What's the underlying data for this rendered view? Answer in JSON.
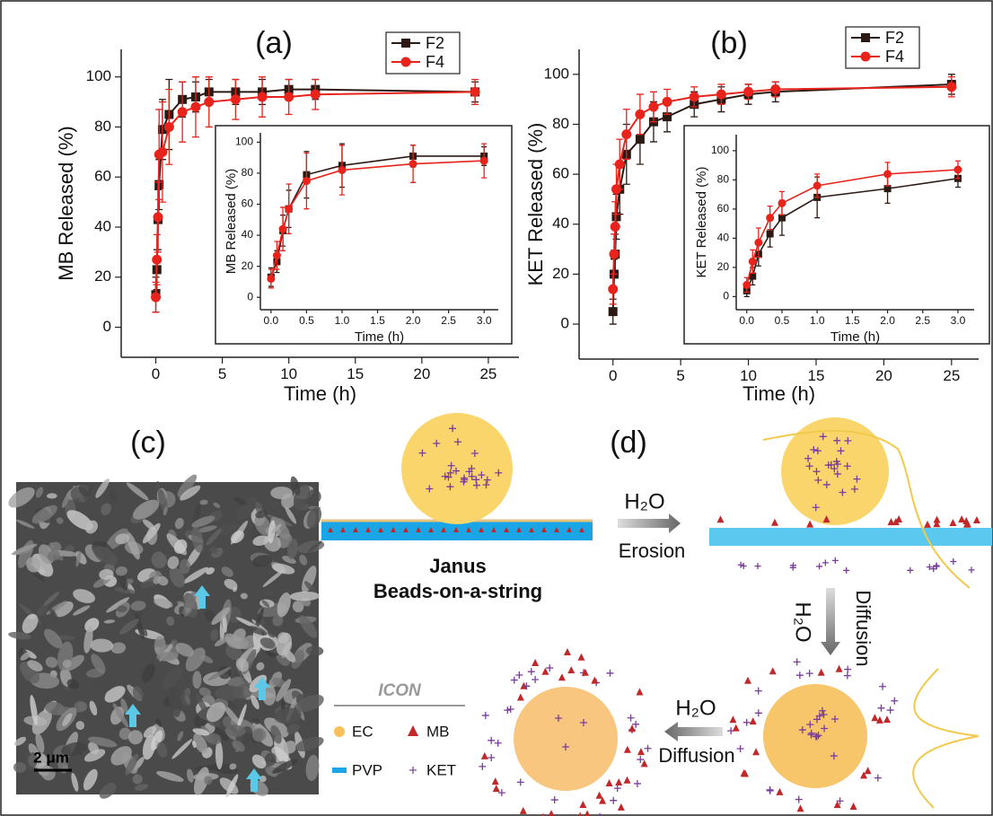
{
  "chart_data": [
    {
      "type": "line",
      "title": "(a)",
      "x_label": "Time (h)",
      "y_label": "MB Released (%)",
      "x": [
        0,
        0.083,
        0.167,
        0.25,
        0.5,
        1,
        2,
        3,
        4,
        6,
        8,
        10,
        12,
        24
      ],
      "series": [
        {
          "name": "F2",
          "color": "#2b1a14",
          "marker": "square",
          "values": [
            13,
            23,
            43,
            57,
            79,
            85,
            91,
            92,
            94,
            94,
            94,
            95,
            95,
            94
          ],
          "errors": [
            7,
            8,
            12,
            10,
            12,
            14,
            7,
            6,
            5,
            5,
            5,
            4,
            4,
            4
          ]
        },
        {
          "name": "F4",
          "color": "#e8231c",
          "marker": "circle",
          "values": [
            12,
            27,
            44,
            69,
            70,
            80,
            86,
            88,
            90,
            91,
            92,
            92,
            93,
            94
          ],
          "errors": [
            6,
            10,
            14,
            18,
            20,
            15,
            12,
            12,
            10,
            8,
            8,
            7,
            6,
            5
          ]
        }
      ],
      "xlim": [
        -2.6,
        27.3
      ],
      "ylim": [
        -12,
        111
      ],
      "xticks": [
        0,
        5,
        10,
        15,
        20,
        25
      ],
      "yticks": [
        0,
        20,
        40,
        60,
        80,
        100
      ],
      "legend": "upper right"
    },
    {
      "type": "line",
      "x_label": "Time (h)",
      "y_label": "MB Released (%)",
      "x": [
        0,
        0.083,
        0.167,
        0.25,
        0.5,
        1,
        2,
        3
      ],
      "series": [
        {
          "name": "F2",
          "color": "#2b1a14",
          "marker": "square",
          "values": [
            13,
            23,
            43,
            57,
            79,
            85,
            91,
            91
          ],
          "errors": [
            6,
            7,
            10,
            12,
            15,
            14,
            7,
            6
          ]
        },
        {
          "name": "F4",
          "color": "#e8231c",
          "marker": "circle",
          "values": [
            12,
            27,
            44,
            57,
            75,
            82,
            86,
            88
          ],
          "errors": [
            6,
            9,
            14,
            16,
            18,
            16,
            12,
            11
          ]
        }
      ],
      "xlim": [
        -0.15,
        3.2
      ],
      "ylim": [
        -8,
        106
      ],
      "xticks": [
        {
          "value": 0,
          "label": "0.0"
        },
        {
          "value": 0.5,
          "label": "0.5"
        },
        {
          "value": 1,
          "label": "1.0"
        },
        {
          "value": 1.5,
          "label": "1.5"
        },
        {
          "value": 2,
          "label": "2.0"
        },
        {
          "value": 2.5,
          "label": "2.5"
        },
        {
          "value": 3,
          "label": "3.0"
        }
      ],
      "yticks": [
        0,
        20,
        40,
        60,
        80,
        100
      ]
    },
    {
      "type": "line",
      "title": "(b)",
      "x_label": "Time (h)",
      "y_label": "KET Released (%)",
      "x": [
        0,
        0.083,
        0.167,
        0.25,
        0.5,
        1,
        2,
        3,
        4,
        6,
        8,
        10,
        12,
        25
      ],
      "series": [
        {
          "name": "F2",
          "color": "#2b1a14",
          "marker": "square",
          "values": [
            5,
            20,
            28,
            43,
            54,
            68,
            74,
            81,
            83,
            88,
            90,
            92,
            93,
            96
          ],
          "errors": [
            5,
            6,
            8,
            9,
            10,
            12,
            10,
            8,
            6,
            5,
            5,
            4,
            4,
            4
          ]
        },
        {
          "name": "F4",
          "color": "#e8231c",
          "marker": "circle",
          "values": [
            14,
            28,
            39,
            54,
            64,
            76,
            84,
            87,
            89,
            91,
            92,
            93,
            94,
            95
          ],
          "errors": [
            6,
            8,
            10,
            10,
            10,
            10,
            8,
            6,
            5,
            4,
            4,
            3,
            3,
            4
          ]
        }
      ],
      "xlim": [
        -2.5,
        27
      ],
      "ylim": [
        -14,
        110
      ],
      "xticks": [
        0,
        5,
        10,
        15,
        20,
        25
      ],
      "yticks": [
        0,
        20,
        40,
        60,
        80,
        100
      ],
      "legend": "upper right"
    },
    {
      "type": "line",
      "x_label": "Time (h)",
      "y_label": "KET Released (%)",
      "x": [
        0,
        0.083,
        0.167,
        0.33,
        0.5,
        1,
        2,
        3
      ],
      "series": [
        {
          "name": "F2",
          "color": "#2b1a14",
          "marker": "square",
          "values": [
            4,
            14,
            29,
            43,
            54,
            68,
            74,
            81
          ],
          "errors": [
            4,
            6,
            8,
            9,
            12,
            14,
            10,
            6
          ]
        },
        {
          "name": "F4",
          "color": "#e8231c",
          "marker": "circle",
          "values": [
            8,
            24,
            37,
            54,
            64,
            76,
            84,
            87
          ],
          "errors": [
            5,
            8,
            10,
            8,
            8,
            8,
            8,
            6
          ]
        }
      ],
      "xlim": [
        -0.15,
        3.23
      ],
      "ylim": [
        -9,
        111
      ],
      "xticks": [
        {
          "value": 0,
          "label": "0.0"
        },
        {
          "value": 0.5,
          "label": "0.5"
        },
        {
          "value": 1,
          "label": "1.0"
        },
        {
          "value": 1.5,
          "label": "1.5"
        },
        {
          "value": 2,
          "label": "2.0"
        },
        {
          "value": 2.5,
          "label": "2.5"
        },
        {
          "value": 3,
          "label": "3.0"
        }
      ],
      "yticks": [
        0,
        20,
        40,
        60,
        80,
        100
      ]
    }
  ],
  "panel_c": {
    "label": "(c)",
    "scale_bar": "2 μm"
  },
  "panel_d": {
    "label": "(d)",
    "bead_label": [
      "Janus",
      "Beads-on-a-string"
    ],
    "steps": [
      {
        "reagent": "H₂O",
        "process": "Erosion"
      },
      {
        "reagent": "H₂O",
        "process": "Diffusion"
      },
      {
        "reagent": "H₂O",
        "process": "Diffusion"
      }
    ],
    "icon": {
      "title": "ICON",
      "items": [
        "EC",
        "MB",
        "PVP",
        "KET"
      ]
    }
  }
}
